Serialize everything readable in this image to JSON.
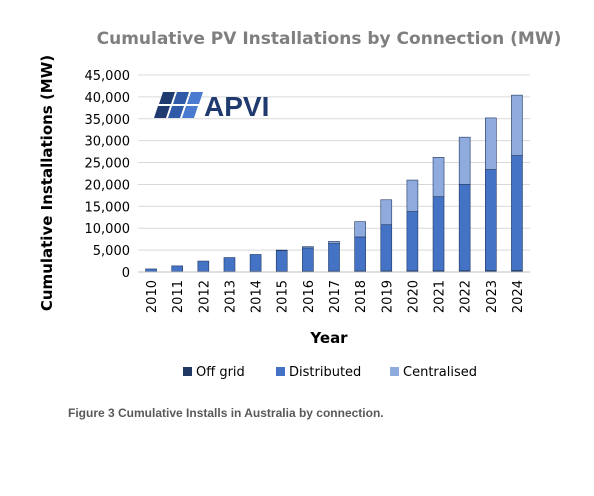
{
  "caption": "Figure 3  Cumulative Installs in Australia by connection.",
  "logo": {
    "text": "APVI"
  },
  "chart_data": {
    "type": "bar",
    "stacked": true,
    "title": "Cumulative PV Installations by Connection (MW)",
    "xlabel": "Year",
    "ylabel": "Cumulative Installations (MW)",
    "ylim": [
      0,
      45000
    ],
    "yticks": [
      0,
      5000,
      10000,
      15000,
      20000,
      25000,
      30000,
      35000,
      40000,
      45000
    ],
    "ytick_labels": [
      "0",
      "5,000",
      "10,000",
      "15,000",
      "20,000",
      "25,000",
      "30,000",
      "35,000",
      "40,000",
      "45,000"
    ],
    "categories": [
      "2010",
      "2011",
      "2012",
      "2013",
      "2014",
      "2015",
      "2016",
      "2017",
      "2018",
      "2019",
      "2020",
      "2021",
      "2022",
      "2023",
      "2024"
    ],
    "grid": true,
    "legend_position": "bottom",
    "series": [
      {
        "name": "Off grid",
        "color": "#1f3864",
        "values": [
          60,
          80,
          100,
          120,
          140,
          160,
          180,
          200,
          220,
          240,
          260,
          280,
          300,
          320,
          340
        ]
      },
      {
        "name": "Distributed",
        "color": "#4472c4",
        "values": [
          640,
          1320,
          2400,
          3180,
          3860,
          4740,
          5320,
          6300,
          7780,
          10560,
          13540,
          16920,
          19700,
          23080,
          26260
        ]
      },
      {
        "name": "Centralised",
        "color": "#8faadc",
        "values": [
          0,
          0,
          0,
          0,
          0,
          100,
          300,
          500,
          3500,
          5700,
          7200,
          9000,
          10800,
          11800,
          13800
        ]
      }
    ]
  }
}
